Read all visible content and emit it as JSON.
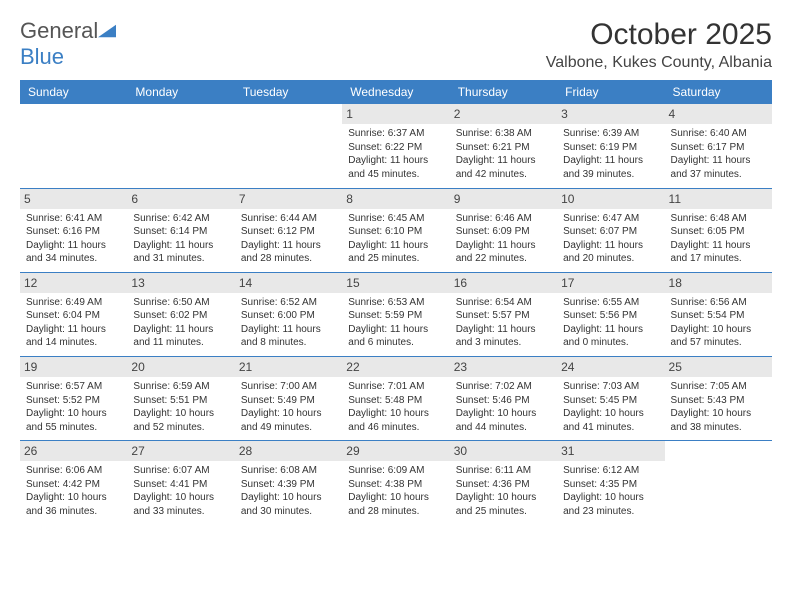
{
  "logo": {
    "text1": "General",
    "text2": "Blue"
  },
  "title": "October 2025",
  "location": "Valbone, Kukes County, Albania",
  "colors": {
    "accent": "#3b7fc4",
    "gray_bg": "#e8e8e8",
    "text": "#333333"
  },
  "daynames": [
    "Sunday",
    "Monday",
    "Tuesday",
    "Wednesday",
    "Thursday",
    "Friday",
    "Saturday"
  ],
  "weeks": [
    [
      {
        "n": "",
        "sr": "",
        "ss": "",
        "d1": "",
        "d2": "",
        "empty": true
      },
      {
        "n": "",
        "sr": "",
        "ss": "",
        "d1": "",
        "d2": "",
        "empty": true
      },
      {
        "n": "",
        "sr": "",
        "ss": "",
        "d1": "",
        "d2": "",
        "empty": true
      },
      {
        "n": "1",
        "sr": "Sunrise: 6:37 AM",
        "ss": "Sunset: 6:22 PM",
        "d1": "Daylight: 11 hours",
        "d2": "and 45 minutes."
      },
      {
        "n": "2",
        "sr": "Sunrise: 6:38 AM",
        "ss": "Sunset: 6:21 PM",
        "d1": "Daylight: 11 hours",
        "d2": "and 42 minutes."
      },
      {
        "n": "3",
        "sr": "Sunrise: 6:39 AM",
        "ss": "Sunset: 6:19 PM",
        "d1": "Daylight: 11 hours",
        "d2": "and 39 minutes."
      },
      {
        "n": "4",
        "sr": "Sunrise: 6:40 AM",
        "ss": "Sunset: 6:17 PM",
        "d1": "Daylight: 11 hours",
        "d2": "and 37 minutes."
      }
    ],
    [
      {
        "n": "5",
        "sr": "Sunrise: 6:41 AM",
        "ss": "Sunset: 6:16 PM",
        "d1": "Daylight: 11 hours",
        "d2": "and 34 minutes."
      },
      {
        "n": "6",
        "sr": "Sunrise: 6:42 AM",
        "ss": "Sunset: 6:14 PM",
        "d1": "Daylight: 11 hours",
        "d2": "and 31 minutes."
      },
      {
        "n": "7",
        "sr": "Sunrise: 6:44 AM",
        "ss": "Sunset: 6:12 PM",
        "d1": "Daylight: 11 hours",
        "d2": "and 28 minutes."
      },
      {
        "n": "8",
        "sr": "Sunrise: 6:45 AM",
        "ss": "Sunset: 6:10 PM",
        "d1": "Daylight: 11 hours",
        "d2": "and 25 minutes."
      },
      {
        "n": "9",
        "sr": "Sunrise: 6:46 AM",
        "ss": "Sunset: 6:09 PM",
        "d1": "Daylight: 11 hours",
        "d2": "and 22 minutes."
      },
      {
        "n": "10",
        "sr": "Sunrise: 6:47 AM",
        "ss": "Sunset: 6:07 PM",
        "d1": "Daylight: 11 hours",
        "d2": "and 20 minutes."
      },
      {
        "n": "11",
        "sr": "Sunrise: 6:48 AM",
        "ss": "Sunset: 6:05 PM",
        "d1": "Daylight: 11 hours",
        "d2": "and 17 minutes."
      }
    ],
    [
      {
        "n": "12",
        "sr": "Sunrise: 6:49 AM",
        "ss": "Sunset: 6:04 PM",
        "d1": "Daylight: 11 hours",
        "d2": "and 14 minutes."
      },
      {
        "n": "13",
        "sr": "Sunrise: 6:50 AM",
        "ss": "Sunset: 6:02 PM",
        "d1": "Daylight: 11 hours",
        "d2": "and 11 minutes."
      },
      {
        "n": "14",
        "sr": "Sunrise: 6:52 AM",
        "ss": "Sunset: 6:00 PM",
        "d1": "Daylight: 11 hours",
        "d2": "and 8 minutes."
      },
      {
        "n": "15",
        "sr": "Sunrise: 6:53 AM",
        "ss": "Sunset: 5:59 PM",
        "d1": "Daylight: 11 hours",
        "d2": "and 6 minutes."
      },
      {
        "n": "16",
        "sr": "Sunrise: 6:54 AM",
        "ss": "Sunset: 5:57 PM",
        "d1": "Daylight: 11 hours",
        "d2": "and 3 minutes."
      },
      {
        "n": "17",
        "sr": "Sunrise: 6:55 AM",
        "ss": "Sunset: 5:56 PM",
        "d1": "Daylight: 11 hours",
        "d2": "and 0 minutes."
      },
      {
        "n": "18",
        "sr": "Sunrise: 6:56 AM",
        "ss": "Sunset: 5:54 PM",
        "d1": "Daylight: 10 hours",
        "d2": "and 57 minutes."
      }
    ],
    [
      {
        "n": "19",
        "sr": "Sunrise: 6:57 AM",
        "ss": "Sunset: 5:52 PM",
        "d1": "Daylight: 10 hours",
        "d2": "and 55 minutes."
      },
      {
        "n": "20",
        "sr": "Sunrise: 6:59 AM",
        "ss": "Sunset: 5:51 PM",
        "d1": "Daylight: 10 hours",
        "d2": "and 52 minutes."
      },
      {
        "n": "21",
        "sr": "Sunrise: 7:00 AM",
        "ss": "Sunset: 5:49 PM",
        "d1": "Daylight: 10 hours",
        "d2": "and 49 minutes."
      },
      {
        "n": "22",
        "sr": "Sunrise: 7:01 AM",
        "ss": "Sunset: 5:48 PM",
        "d1": "Daylight: 10 hours",
        "d2": "and 46 minutes."
      },
      {
        "n": "23",
        "sr": "Sunrise: 7:02 AM",
        "ss": "Sunset: 5:46 PM",
        "d1": "Daylight: 10 hours",
        "d2": "and 44 minutes."
      },
      {
        "n": "24",
        "sr": "Sunrise: 7:03 AM",
        "ss": "Sunset: 5:45 PM",
        "d1": "Daylight: 10 hours",
        "d2": "and 41 minutes."
      },
      {
        "n": "25",
        "sr": "Sunrise: 7:05 AM",
        "ss": "Sunset: 5:43 PM",
        "d1": "Daylight: 10 hours",
        "d2": "and 38 minutes."
      }
    ],
    [
      {
        "n": "26",
        "sr": "Sunrise: 6:06 AM",
        "ss": "Sunset: 4:42 PM",
        "d1": "Daylight: 10 hours",
        "d2": "and 36 minutes."
      },
      {
        "n": "27",
        "sr": "Sunrise: 6:07 AM",
        "ss": "Sunset: 4:41 PM",
        "d1": "Daylight: 10 hours",
        "d2": "and 33 minutes."
      },
      {
        "n": "28",
        "sr": "Sunrise: 6:08 AM",
        "ss": "Sunset: 4:39 PM",
        "d1": "Daylight: 10 hours",
        "d2": "and 30 minutes."
      },
      {
        "n": "29",
        "sr": "Sunrise: 6:09 AM",
        "ss": "Sunset: 4:38 PM",
        "d1": "Daylight: 10 hours",
        "d2": "and 28 minutes."
      },
      {
        "n": "30",
        "sr": "Sunrise: 6:11 AM",
        "ss": "Sunset: 4:36 PM",
        "d1": "Daylight: 10 hours",
        "d2": "and 25 minutes."
      },
      {
        "n": "31",
        "sr": "Sunrise: 6:12 AM",
        "ss": "Sunset: 4:35 PM",
        "d1": "Daylight: 10 hours",
        "d2": "and 23 minutes."
      },
      {
        "n": "",
        "sr": "",
        "ss": "",
        "d1": "",
        "d2": "",
        "empty": true
      }
    ]
  ]
}
